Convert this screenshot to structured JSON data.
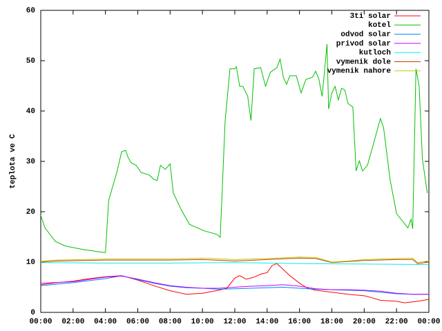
{
  "chart_data": {
    "type": "line",
    "ylabel": "teplota ve C",
    "xlim": [
      0,
      24
    ],
    "ylim": [
      0,
      60
    ],
    "xticks": [
      {
        "value": 0,
        "label": "00:00"
      },
      {
        "value": 2,
        "label": "02:00"
      },
      {
        "value": 4,
        "label": "04:00"
      },
      {
        "value": 6,
        "label": "06:00"
      },
      {
        "value": 8,
        "label": "08:00"
      },
      {
        "value": 10,
        "label": "10:00"
      },
      {
        "value": 12,
        "label": "12:00"
      },
      {
        "value": 14,
        "label": "14:00"
      },
      {
        "value": 16,
        "label": "16:00"
      },
      {
        "value": 18,
        "label": "18:00"
      },
      {
        "value": 20,
        "label": "20:00"
      },
      {
        "value": 22,
        "label": "22:00"
      },
      {
        "value": 24,
        "label": "00:00"
      }
    ],
    "yticks": [
      0,
      10,
      20,
      30,
      40,
      50,
      60
    ],
    "legend": "top-right",
    "series": [
      {
        "name": "3ti solar",
        "color": "#ff0000",
        "x": [
          0,
          1,
          2,
          3,
          4,
          5,
          6,
          7,
          8,
          9,
          10,
          11,
          11.5,
          12,
          12.3,
          12.7,
          13.2,
          13.6,
          14,
          14.3,
          14.6,
          15,
          15.4,
          16,
          16.5,
          17,
          18,
          19,
          20,
          20.5,
          21,
          22,
          22.5,
          23,
          23.5,
          24
        ],
        "values": [
          5.5,
          5.9,
          6.2,
          6.7,
          7.1,
          7.3,
          6.4,
          5.3,
          4.3,
          3.6,
          3.8,
          4.4,
          4.8,
          6.8,
          7.3,
          6.6,
          7,
          7.6,
          7.9,
          9.3,
          9.7,
          8.5,
          7.3,
          5.8,
          4.8,
          4.4,
          4,
          3.6,
          3.3,
          2.9,
          2.4,
          2.2,
          1.9,
          2.1,
          2.3,
          2.6
        ]
      },
      {
        "name": "kotel",
        "color": "#00c000",
        "x": [
          0,
          0.26,
          0.9,
          1.5,
          2.6,
          3.9,
          4.0,
          4.2,
          4.7,
          5.0,
          5.25,
          5.4,
          5.6,
          5.9,
          6.2,
          6.7,
          7.0,
          7.2,
          7.4,
          7.7,
          8.0,
          8.2,
          8.7,
          9.2,
          10.1,
          10.9,
          11.1,
          11.4,
          11.7,
          12.0,
          12.1,
          12.3,
          12.5,
          12.8,
          13.0,
          13.2,
          13.6,
          13.9,
          14.2,
          14.6,
          14.8,
          15.0,
          15.2,
          15.4,
          15.8,
          16.1,
          16.4,
          16.8,
          17.0,
          17.2,
          17.4,
          17.5,
          17.7,
          17.8,
          18.0,
          18.2,
          18.4,
          18.6,
          18.8,
          19.0,
          19.3,
          19.5,
          19.7,
          19.9,
          20.2,
          20.5,
          21.0,
          21.2,
          21.6,
          22.0,
          22.7,
          22.9,
          23.0,
          23.2,
          23.4,
          23.6,
          23.9
        ],
        "values": [
          19.3,
          16.8,
          14.1,
          13.2,
          12.5,
          11.9,
          11.9,
          22.3,
          27.8,
          31.9,
          32.2,
          30.8,
          29.7,
          29.2,
          27.8,
          27.3,
          26.4,
          26.2,
          29.2,
          28.4,
          29.5,
          23.7,
          20.3,
          17.5,
          16.2,
          15.5,
          14.9,
          38.1,
          48.4,
          48.4,
          48.8,
          44.9,
          44.9,
          42.9,
          38.1,
          48.4,
          48.6,
          44.9,
          47.7,
          48.6,
          50.3,
          46.7,
          45.3,
          47.0,
          47.0,
          43.6,
          46.3,
          46.7,
          47.9,
          46.3,
          42.9,
          46.3,
          53.3,
          40.4,
          43.6,
          44.9,
          42.2,
          44.5,
          44.2,
          41.5,
          40.8,
          28.1,
          30.1,
          28.1,
          29.2,
          32.6,
          38.5,
          36.7,
          26.4,
          19.6,
          16.8,
          18.5,
          16.6,
          48.4,
          44.9,
          30.5,
          23.7
        ]
      },
      {
        "name": "odvod solar",
        "color": "#0080ff",
        "x": [
          0,
          2,
          4,
          5,
          6,
          7,
          8,
          9,
          10,
          11,
          12,
          13,
          14,
          15,
          16,
          17,
          18,
          19,
          20,
          21,
          22,
          23,
          24
        ],
        "values": [
          5.3,
          5.9,
          6.7,
          7.3,
          6.5,
          5.8,
          5.2,
          4.9,
          4.8,
          4.6,
          4.7,
          4.8,
          4.9,
          5,
          4.8,
          4.6,
          4.5,
          4.4,
          4.3,
          4,
          3.7,
          3.6,
          3.6
        ]
      },
      {
        "name": "privod solar",
        "color": "#c000ff",
        "x": [
          0,
          2,
          4,
          5,
          6,
          7,
          8,
          9,
          10,
          11,
          12,
          13,
          14,
          15,
          16,
          17,
          18,
          19,
          20,
          21,
          22,
          23,
          24
        ],
        "values": [
          5.8,
          6.1,
          7,
          7.2,
          6.6,
          5.9,
          5.3,
          5,
          4.8,
          4.8,
          5,
          5.2,
          5.3,
          5.5,
          5.2,
          4.7,
          4.5,
          4.5,
          4.4,
          4.2,
          3.8,
          3.6,
          3.6
        ]
      },
      {
        "name": "kutloch",
        "color": "#00eeee",
        "x": [
          0,
          4,
          8,
          12,
          16,
          20,
          24
        ],
        "values": [
          9.9,
          9.8,
          9.8,
          9.9,
          9.7,
          9.6,
          9.5
        ]
      },
      {
        "name": "vymenik dole",
        "color": "#c04000",
        "x": [
          0,
          1,
          4,
          8,
          10,
          12,
          14,
          16,
          17,
          18,
          19,
          20,
          22,
          23,
          23.3,
          24
        ],
        "values": [
          10,
          10.2,
          10.4,
          10.4,
          10.5,
          10.2,
          10.5,
          10.8,
          10.7,
          9.9,
          10.1,
          10.3,
          10.5,
          10.5,
          9.7,
          10
        ]
      },
      {
        "name": "vymenik nahore",
        "color": "#c8c800",
        "x": [
          0,
          1,
          4,
          8,
          10,
          12,
          14,
          16,
          17,
          18,
          19,
          20,
          22,
          23,
          23.3,
          24
        ],
        "values": [
          10.2,
          10.4,
          10.6,
          10.6,
          10.8,
          10.5,
          10.7,
          11,
          10.9,
          10,
          10.2,
          10.5,
          10.7,
          10.8,
          9.9,
          10.2
        ]
      }
    ]
  }
}
